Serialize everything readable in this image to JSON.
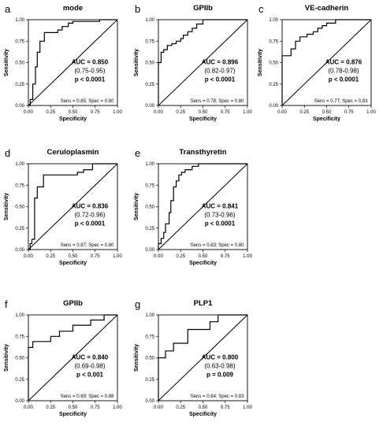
{
  "chart_data": [
    {
      "letter": "a",
      "type": "line",
      "title": "mode",
      "xlabel": "Specificity",
      "ylabel": "Sensitivity",
      "xlim": [
        0,
        1
      ],
      "ylim": [
        0,
        1
      ],
      "xticks": [
        "0.00",
        "0.25",
        "0.50",
        "0.75",
        "1.00"
      ],
      "yticks": [
        "0.00",
        "0.25",
        "0.50",
        "0.75",
        "1.00"
      ],
      "auc": "AUC = 0.850",
      "ci": "(0.75-0.95)",
      "p": "p < 0.0001",
      "sens_spec": "Sens = 0.85; Spec = 0.80",
      "roc": [
        [
          0,
          0
        ],
        [
          0.02,
          0
        ],
        [
          0.02,
          0.07
        ],
        [
          0.05,
          0.07
        ],
        [
          0.05,
          0.25
        ],
        [
          0.08,
          0.25
        ],
        [
          0.08,
          0.45
        ],
        [
          0.1,
          0.45
        ],
        [
          0.1,
          0.62
        ],
        [
          0.13,
          0.62
        ],
        [
          0.13,
          0.75
        ],
        [
          0.18,
          0.75
        ],
        [
          0.18,
          0.85
        ],
        [
          0.33,
          0.85
        ],
        [
          0.33,
          0.88
        ],
        [
          0.38,
          0.88
        ],
        [
          0.38,
          0.92
        ],
        [
          0.45,
          0.92
        ],
        [
          0.45,
          0.96
        ],
        [
          0.5,
          0.96
        ],
        [
          0.5,
          0.98
        ],
        [
          0.8,
          0.98
        ],
        [
          0.8,
          1
        ],
        [
          1,
          1
        ]
      ]
    },
    {
      "letter": "b",
      "type": "line",
      "title": "GPIIb",
      "xlabel": "Specificity",
      "ylabel": "Sensitivity",
      "xlim": [
        0,
        1
      ],
      "ylim": [
        0,
        1
      ],
      "xticks": [
        "0.00",
        "0.25",
        "0.50",
        "0.75",
        "1.00"
      ],
      "yticks": [
        "0.00",
        "0.25",
        "0.50",
        "0.75",
        "1.00"
      ],
      "auc": "AUC = 0.896",
      "ci": "(0.82-0.97)",
      "p": "p < 0.0001",
      "sens_spec": "Sens = 0.78; Spec = 0.80",
      "roc": [
        [
          0,
          0
        ],
        [
          0,
          0.5
        ],
        [
          0.03,
          0.5
        ],
        [
          0.03,
          0.62
        ],
        [
          0.06,
          0.62
        ],
        [
          0.06,
          0.65
        ],
        [
          0.1,
          0.65
        ],
        [
          0.1,
          0.7
        ],
        [
          0.15,
          0.7
        ],
        [
          0.15,
          0.72
        ],
        [
          0.2,
          0.72
        ],
        [
          0.2,
          0.75
        ],
        [
          0.25,
          0.75
        ],
        [
          0.25,
          0.78
        ],
        [
          0.28,
          0.78
        ],
        [
          0.28,
          0.82
        ],
        [
          0.33,
          0.82
        ],
        [
          0.33,
          0.86
        ],
        [
          0.38,
          0.86
        ],
        [
          0.38,
          0.9
        ],
        [
          0.43,
          0.9
        ],
        [
          0.43,
          0.95
        ],
        [
          0.5,
          0.95
        ],
        [
          0.5,
          1
        ],
        [
          1,
          1
        ]
      ]
    },
    {
      "letter": "c",
      "type": "line",
      "title": "VE-cadherin",
      "xlabel": "Specificity",
      "ylabel": "Sensitivity",
      "xlim": [
        0,
        1
      ],
      "ylim": [
        0,
        1
      ],
      "xticks": [
        "0.00",
        "0.25",
        "0.50",
        "0.75",
        "1.00"
      ],
      "yticks": [
        "0.00",
        "0.25",
        "0.50",
        "0.75",
        "1.00"
      ],
      "auc": "AUC = 0.876",
      "ci": "(0.78-0.98)",
      "p": "p < 0.0001",
      "sens_spec": "Sens = 0.77; Spec = 0.83",
      "roc": [
        [
          0,
          0
        ],
        [
          0,
          0.58
        ],
        [
          0.1,
          0.58
        ],
        [
          0.1,
          0.66
        ],
        [
          0.15,
          0.66
        ],
        [
          0.15,
          0.75
        ],
        [
          0.2,
          0.75
        ],
        [
          0.2,
          0.8
        ],
        [
          0.28,
          0.8
        ],
        [
          0.28,
          0.83
        ],
        [
          0.35,
          0.83
        ],
        [
          0.35,
          0.86
        ],
        [
          0.4,
          0.86
        ],
        [
          0.4,
          0.9
        ],
        [
          0.45,
          0.9
        ],
        [
          0.45,
          0.93
        ],
        [
          0.5,
          0.93
        ],
        [
          0.5,
          0.96
        ],
        [
          0.6,
          0.96
        ],
        [
          0.6,
          1
        ],
        [
          1,
          1
        ]
      ]
    },
    {
      "letter": "d",
      "type": "line",
      "title": "Ceruloplasmin",
      "xlabel": "Specificity",
      "ylabel": "Sensitivity",
      "xlim": [
        0,
        1
      ],
      "ylim": [
        0,
        1
      ],
      "xticks": [
        "0.00",
        "0.25",
        "0.50",
        "0.75",
        "1.00"
      ],
      "yticks": [
        "0.00",
        "0.25",
        "0.50",
        "0.75",
        "1.00"
      ],
      "auc": "AUC = 0.836",
      "ci": "(0.72-0.96)",
      "p": "p < 0.0001",
      "sens_spec": "Sens = 0.87; Spec = 0.80",
      "roc": [
        [
          0,
          0
        ],
        [
          0.02,
          0
        ],
        [
          0.02,
          0.07
        ],
        [
          0.04,
          0.07
        ],
        [
          0.04,
          0.12
        ],
        [
          0.07,
          0.12
        ],
        [
          0.07,
          0.6
        ],
        [
          0.1,
          0.6
        ],
        [
          0.1,
          0.73
        ],
        [
          0.17,
          0.73
        ],
        [
          0.17,
          0.87
        ],
        [
          0.55,
          0.87
        ],
        [
          0.55,
          0.9
        ],
        [
          0.62,
          0.9
        ],
        [
          0.62,
          0.93
        ],
        [
          0.72,
          0.93
        ],
        [
          0.72,
          1
        ],
        [
          1,
          1
        ]
      ]
    },
    {
      "letter": "e",
      "type": "line",
      "title": "Transthyretin",
      "xlabel": "Specificity",
      "ylabel": "Sensitivity",
      "xlim": [
        0,
        1
      ],
      "ylim": [
        0,
        1
      ],
      "xticks": [
        "0.00",
        "0.25",
        "0.50",
        "0.75",
        "1.00"
      ],
      "yticks": [
        "0.00",
        "0.25",
        "0.50",
        "0.75",
        "1.00"
      ],
      "auc": "AUC = 0.841",
      "ci": "(0.73-0.96)",
      "p": "p < 0.0001",
      "sens_spec": "Sens = 0.83; Spec = 0.80",
      "roc": [
        [
          0,
          0
        ],
        [
          0,
          0.07
        ],
        [
          0.03,
          0.07
        ],
        [
          0.03,
          0.13
        ],
        [
          0.06,
          0.13
        ],
        [
          0.06,
          0.2
        ],
        [
          0.08,
          0.2
        ],
        [
          0.08,
          0.3
        ],
        [
          0.12,
          0.3
        ],
        [
          0.12,
          0.43
        ],
        [
          0.14,
          0.43
        ],
        [
          0.14,
          0.57
        ],
        [
          0.17,
          0.57
        ],
        [
          0.17,
          0.73
        ],
        [
          0.2,
          0.73
        ],
        [
          0.2,
          0.8
        ],
        [
          0.23,
          0.8
        ],
        [
          0.23,
          0.87
        ],
        [
          0.26,
          0.87
        ],
        [
          0.26,
          0.9
        ],
        [
          0.3,
          0.9
        ],
        [
          0.3,
          0.93
        ],
        [
          0.38,
          0.93
        ],
        [
          0.38,
          0.97
        ],
        [
          0.45,
          0.97
        ],
        [
          0.45,
          1
        ],
        [
          1,
          1
        ]
      ]
    },
    {
      "letter": "f",
      "type": "line",
      "title": "GPIIb",
      "xlabel": "Specificity",
      "ylabel": "Sensitivity",
      "xlim": [
        0,
        1
      ],
      "ylim": [
        0,
        1
      ],
      "xticks": [
        "0.00",
        "0.25",
        "0.50",
        "0.75",
        "1.00"
      ],
      "yticks": [
        "0.00",
        "0.25",
        "0.50",
        "0.75",
        "1.00"
      ],
      "auc": "AUC = 0.840",
      "ci": "(0.69-0.98)",
      "p": "p < 0.001",
      "sens_spec": "Sens = 0.69; Spec = 0.88",
      "roc": [
        [
          0,
          0
        ],
        [
          0,
          0.62
        ],
        [
          0.05,
          0.62
        ],
        [
          0.05,
          0.69
        ],
        [
          0.25,
          0.69
        ],
        [
          0.25,
          0.75
        ],
        [
          0.35,
          0.75
        ],
        [
          0.35,
          0.81
        ],
        [
          0.5,
          0.81
        ],
        [
          0.5,
          0.88
        ],
        [
          0.7,
          0.88
        ],
        [
          0.7,
          0.94
        ],
        [
          0.85,
          0.94
        ],
        [
          0.85,
          1
        ],
        [
          1,
          1
        ]
      ]
    },
    {
      "letter": "g",
      "type": "line",
      "title": "PLP1",
      "xlabel": "Specificity",
      "ylabel": "Sensitivity",
      "xlim": [
        0,
        1
      ],
      "ylim": [
        0,
        1
      ],
      "xticks": [
        "0.00",
        "0.25",
        "0.50",
        "0.75",
        "1.00"
      ],
      "yticks": [
        "0.00",
        "0.25",
        "0.50",
        "0.75",
        "1.00"
      ],
      "auc": "AUC = 0.800",
      "ci": "(0.63-0.98)",
      "p": "p = 0.009",
      "sens_spec": "Sens = 0.64; Spec = 0.83",
      "roc": [
        [
          0,
          0
        ],
        [
          0,
          0.5
        ],
        [
          0.08,
          0.5
        ],
        [
          0.08,
          0.58
        ],
        [
          0.17,
          0.58
        ],
        [
          0.17,
          0.67
        ],
        [
          0.33,
          0.67
        ],
        [
          0.33,
          0.83
        ],
        [
          0.58,
          0.83
        ],
        [
          0.58,
          0.92
        ],
        [
          0.67,
          0.92
        ],
        [
          0.67,
          1
        ],
        [
          1,
          1
        ]
      ]
    }
  ]
}
